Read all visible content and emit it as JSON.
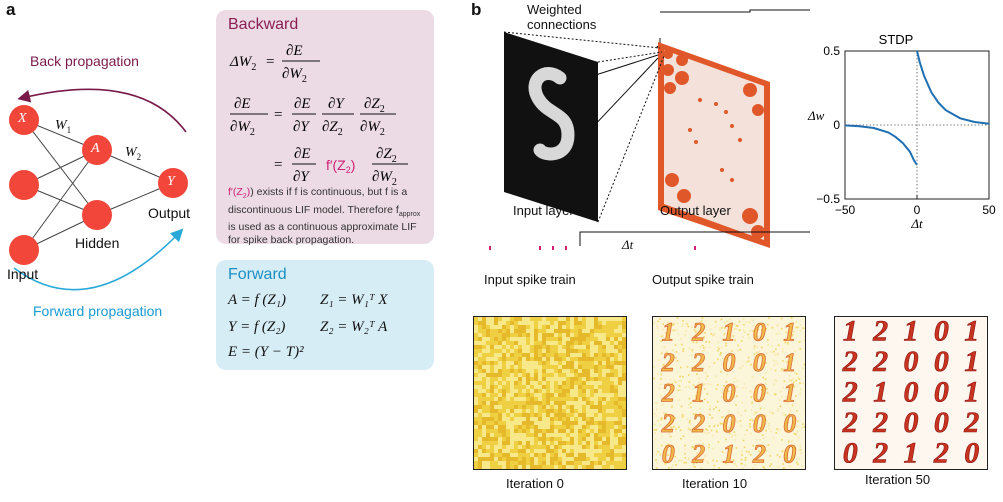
{
  "panel_a": {
    "letter": "a",
    "back_propagation_label": "Back propagation",
    "forward_propagation_label": "Forward propagation",
    "node_x": "X",
    "node_a": "A",
    "node_y": "Y",
    "w1": "W",
    "w1_sub": "1",
    "w2": "W",
    "w2_sub": "2",
    "input_label": "Input",
    "hidden_label": "Hidden",
    "output_label": "Output",
    "colors": {
      "node": "#f2463a",
      "back_arrow": "#7a1a4a",
      "forward_arrow": "#2aa8d8"
    }
  },
  "backward_box": {
    "title": "Backward",
    "note_prefix": "f′(Z",
    "note_prefix_sub": "2",
    "note_text_1": ") exists if f is continuous, but f is a discontinuous LIF model. Therefore f",
    "note_sub": "approx",
    "note_text_2": " is used as a continuous approximate LIF for spike back propagation."
  },
  "forward_box": {
    "title": "Forward",
    "eq1": "A = f (Z₁)",
    "eq2": "Z₁ = W₁ᵀ X",
    "eq3": "Y = f (Z₂)",
    "eq4": "Z₂ = W₂ᵀ A",
    "eq5": "E = (Y − T)²"
  },
  "panel_b": {
    "letter": "b",
    "weighted_connections": "Weighted\nconnections",
    "stdp_title": "STDP",
    "input_layer": "Input layer",
    "output_layer": "Output layer",
    "input_spike_train": "Input spike train",
    "output_spike_train": "Output spike train",
    "delta_t": "Δt",
    "captions": [
      "Iteration 0",
      "Iteration 10",
      "Iteration 50"
    ],
    "iter10_digits": [
      [
        "1",
        "2",
        "1",
        "0",
        "1"
      ],
      [
        "2",
        "2",
        "0",
        "0",
        "1"
      ],
      [
        "2",
        "1",
        "0",
        "0",
        "1"
      ],
      [
        "2",
        "2",
        "0",
        "0",
        "0"
      ],
      [
        "0",
        "2",
        "1",
        "2",
        "0"
      ]
    ],
    "iter50_digits": [
      [
        "1",
        "2",
        "1",
        "0",
        "1"
      ],
      [
        "2",
        "2",
        "0",
        "0",
        "1"
      ],
      [
        "2",
        "1",
        "0",
        "0",
        "1"
      ],
      [
        "2",
        "2",
        "0",
        "0",
        "2"
      ],
      [
        "0",
        "2",
        "1",
        "2",
        "0"
      ]
    ],
    "colors": {
      "spike": "#d01f74",
      "stdp_curve": "#1f6fb2",
      "output_layer": "#e0582a"
    }
  },
  "chart_data": {
    "type": "line",
    "title": "STDP",
    "xlabel": "Δt",
    "ylabel": "Δw",
    "xlim": [
      -50,
      50
    ],
    "ylim": [
      -0.5,
      0.5
    ],
    "xticks": [
      "−50",
      "0",
      "50"
    ],
    "yticks": [
      "0.5",
      "0",
      "−0.5"
    ],
    "series": [
      {
        "x": [
          -50,
          -40,
          -30,
          -20,
          -15,
          -10,
          -5,
          -2,
          0
        ],
        "y": [
          -0.003,
          -0.008,
          -0.02,
          -0.05,
          -0.08,
          -0.12,
          -0.18,
          -0.24,
          -0.27
        ]
      },
      {
        "x": [
          0,
          2,
          5,
          10,
          15,
          20,
          30,
          40,
          50
        ],
        "y": [
          0.5,
          0.42,
          0.33,
          0.22,
          0.15,
          0.1,
          0.045,
          0.02,
          0.008
        ]
      }
    ]
  }
}
